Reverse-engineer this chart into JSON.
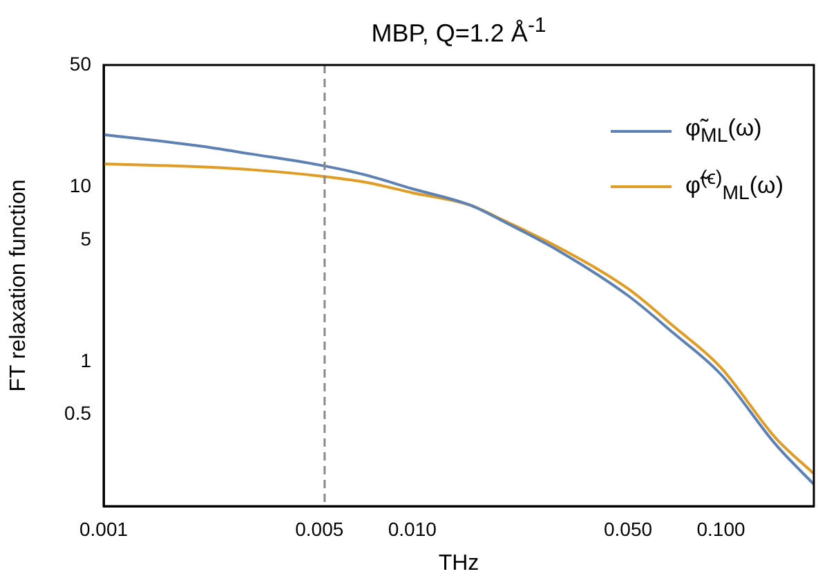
{
  "chart_data": {
    "type": "line",
    "title": "MBP, Q=1.2 Å$^{-1}$",
    "xlabel": "THz",
    "ylabel": "FT relaxation function",
    "log": "xy",
    "grid": false,
    "legend": "top right",
    "line_style": "solid",
    "marker": "none",
    "xlim": [
      0.001,
      0.2
    ],
    "xticks": [
      {
        "value": 0.001,
        "label": "0.001"
      },
      {
        "value": 0.005,
        "label": "0.005"
      },
      {
        "value": 0.01,
        "label": "0.010"
      },
      {
        "value": 0.05,
        "label": "0.050"
      },
      {
        "value": 0.1,
        "label": "0.100"
      }
    ],
    "ylim": [
      0.15,
      50
    ],
    "yticks": [
      0.5,
      1,
      5,
      10,
      50
    ],
    "x": [
      0.001,
      0.002,
      0.003,
      0.005,
      0.007,
      0.01,
      0.0154,
      0.02,
      0.03,
      0.05,
      0.07,
      0.1,
      0.15,
      0.2
    ],
    "series": [
      {
        "name": "φ̃$_{ML}$(ω)",
        "color": "#5e81b5",
        "values": [
          20,
          17.3,
          15.5,
          13.4,
          11.8,
          9.8,
          7.9,
          6.3,
          4.3,
          2.4,
          1.47,
          0.85,
          0.34,
          0.2
        ]
      },
      {
        "name": "φ̃$^{(ϵ)}$$_{ML}$(ω)",
        "color": "#e19c24",
        "values": [
          13.6,
          13.1,
          12.6,
          11.6,
          10.7,
          9.3,
          7.9,
          6.4,
          4.5,
          2.63,
          1.61,
          0.93,
          0.37,
          0.23
        ]
      }
    ],
    "ref_lines": [
      {
        "axis": "x",
        "value": 0.0052,
        "color": "#888888",
        "line_style": "dashed"
      }
    ]
  }
}
